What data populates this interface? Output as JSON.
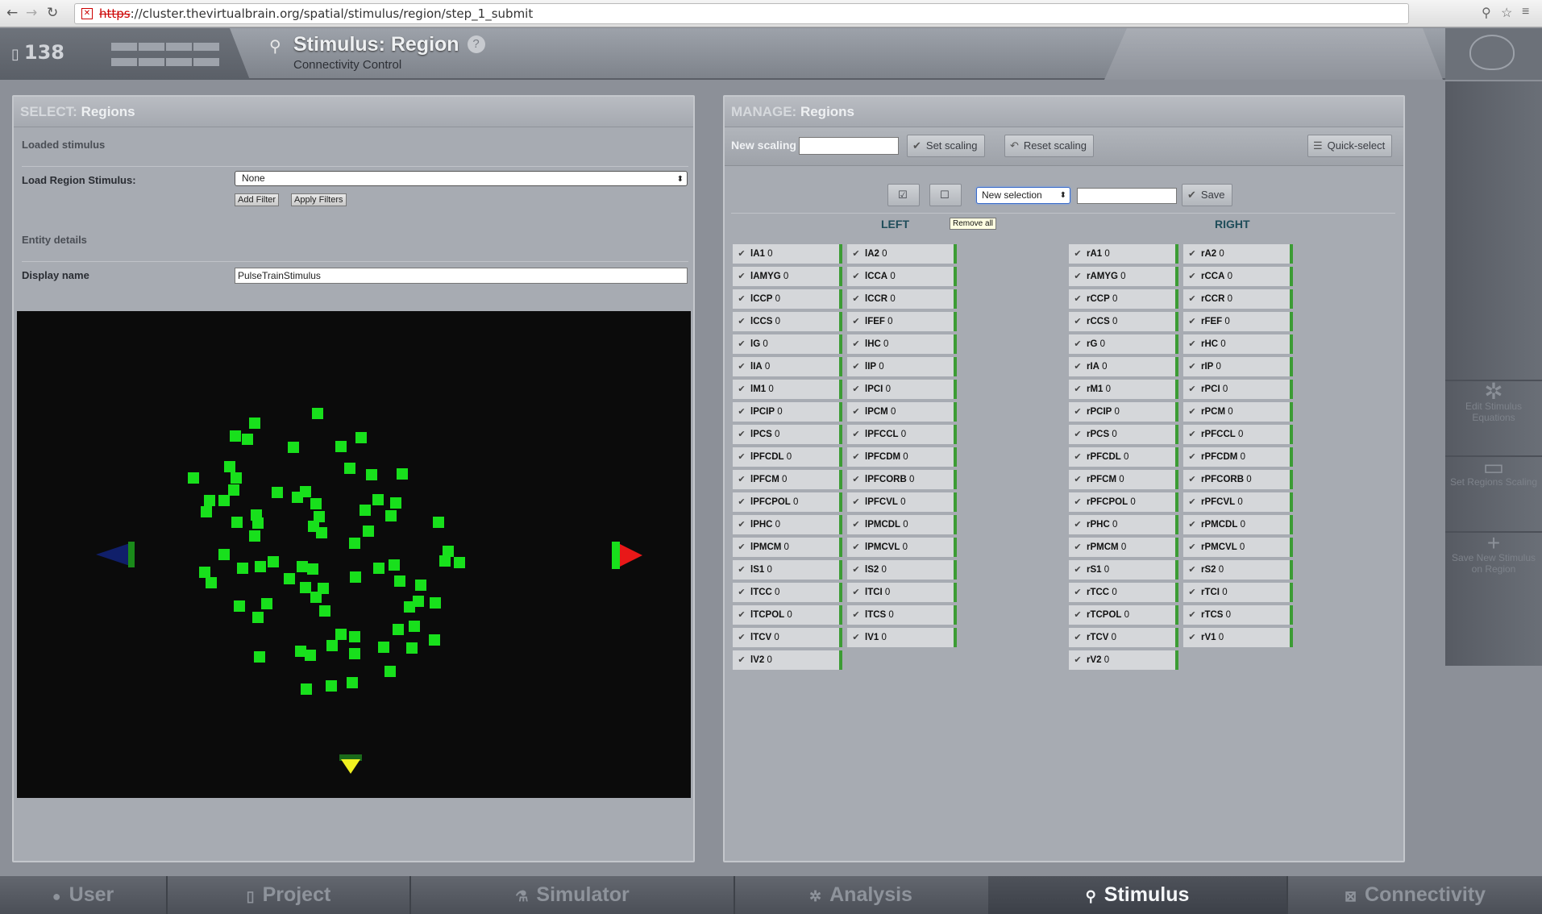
{
  "browser": {
    "url_scheme": "https",
    "url_rest": "://cluster.thevirtualbrain.org/spatial/stimulus/region/step_1_submit"
  },
  "header": {
    "project_number": "138",
    "title": "Stimulus: Region",
    "subtitle": "Connectivity Control",
    "help": "?"
  },
  "left_panel": {
    "head_key": "SELECT:",
    "head_value": "Regions",
    "loaded_stimulus": "Loaded stimulus",
    "load_label": "Load Region Stimulus:",
    "load_value": "None",
    "add_filter": "Add Filter",
    "apply_filters": "Apply Filters",
    "entity_details": "Entity details",
    "display_name_label": "Display name",
    "display_name_value": "PulseTrainStimulus"
  },
  "right_panel": {
    "head_key": "MANAGE:",
    "head_value": "Regions",
    "new_scaling": "New scaling",
    "set_scaling": "Set scaling",
    "reset_scaling": "Reset scaling",
    "quick_select": "Quick-select",
    "selection_value": "New selection",
    "save": "Save",
    "tooltip": "Remove all",
    "left_head": "LEFT",
    "right_head": "RIGHT",
    "left_col1": [
      "lA1",
      "lAMYG",
      "lCCP",
      "lCCS",
      "lG",
      "lIA",
      "lM1",
      "lPCIP",
      "lPCS",
      "lPFCDL",
      "lPFCM",
      "lPFCPOL",
      "lPHC",
      "lPMCM",
      "lS1",
      "lTCC",
      "lTCPOL",
      "lTCV",
      "lV2"
    ],
    "left_col2": [
      "lA2",
      "lCCA",
      "lCCR",
      "lFEF",
      "lHC",
      "lIP",
      "lPCI",
      "lPCM",
      "lPFCCL",
      "lPFCDM",
      "lPFCORB",
      "lPFCVL",
      "lPMCDL",
      "lPMCVL",
      "lS2",
      "lTCI",
      "lTCS",
      "lV1"
    ],
    "right_col1": [
      "rA1",
      "rAMYG",
      "rCCP",
      "rCCS",
      "rG",
      "rIA",
      "rM1",
      "rPCIP",
      "rPCS",
      "rPFCDL",
      "rPFCM",
      "rPFCPOL",
      "rPHC",
      "rPMCM",
      "rS1",
      "rTCC",
      "rTCPOL",
      "rTCV",
      "rV2"
    ],
    "right_col2": [
      "rA2",
      "rCCA",
      "rCCR",
      "rFEF",
      "rHC",
      "rIP",
      "rPCI",
      "rPCM",
      "rPFCCL",
      "rPFCDM",
      "rPFCORB",
      "rPFCVL",
      "rPMCDL",
      "rPMCVL",
      "rS2",
      "rTCI",
      "rTCS",
      "rV1"
    ],
    "cell_value": "0",
    "check_glyph": "✔"
  },
  "right_sidebar": [
    {
      "icon": "gear-icon",
      "label": "Edit Stimulus Equations"
    },
    {
      "icon": "screen-icon",
      "label": "Set Regions Scaling"
    },
    {
      "icon": "plus-icon",
      "label": "Save New Stimulus on Region"
    }
  ],
  "tabs": [
    {
      "label": "User",
      "icon": "user-icon",
      "active": false
    },
    {
      "label": "Project",
      "icon": "document-icon",
      "active": false
    },
    {
      "label": "Simulator",
      "icon": "flask-icon",
      "active": false
    },
    {
      "label": "Analysis",
      "icon": "gear-icon",
      "active": false
    },
    {
      "label": "Stimulus",
      "icon": "pin-icon",
      "active": true
    },
    {
      "label": "Connectivity",
      "icon": "network-icon",
      "active": false
    }
  ],
  "colors": {
    "node_green": "#18e01c",
    "active_cell_border": "#3c9c34",
    "arrow_red": "#e81818",
    "arrow_yellow": "#f0f020",
    "arrow_blue": "#101f6a"
  }
}
